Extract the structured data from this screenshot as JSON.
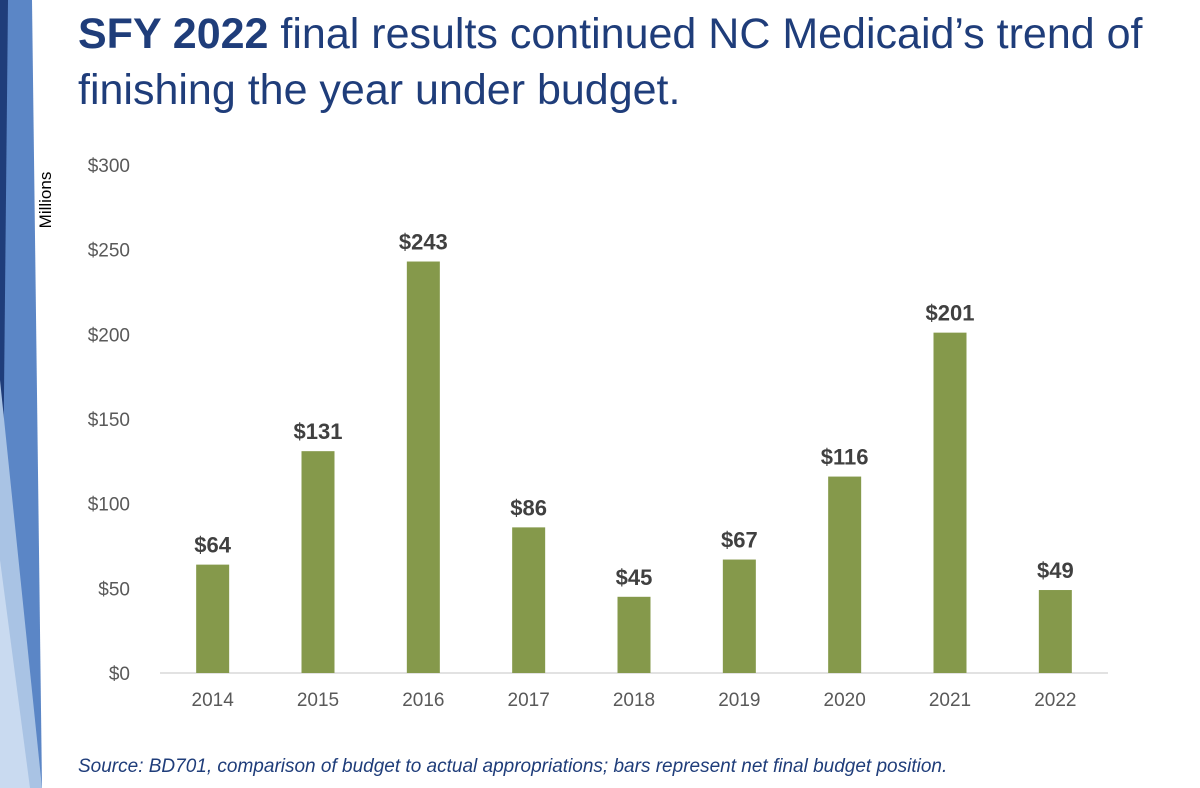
{
  "title": {
    "bold": "SFY 2022",
    "rest": " final results continued NC Medicaid’s trend of finishing the year under budget."
  },
  "source": "Source: BD701, comparison of budget to actual appropriations; bars represent net final budget position.",
  "colors": {
    "bar": "#85994b",
    "title": "#1f3d7a",
    "accent_dark": "#1f3d7a",
    "accent_mid": "#5b86c6",
    "accent_light": "#a9c3e4"
  },
  "chart_data": {
    "type": "bar",
    "categories": [
      "2014",
      "2015",
      "2016",
      "2017",
      "2018",
      "2019",
      "2020",
      "2021",
      "2022"
    ],
    "values": [
      64,
      131,
      243,
      86,
      45,
      67,
      116,
      201,
      49
    ],
    "data_labels": [
      "$64",
      "$131",
      "$243",
      "$86",
      "$45",
      "$67",
      "$116",
      "$201",
      "$49"
    ],
    "ylabel": "Millions",
    "ylim": [
      0,
      300
    ],
    "yticks": [
      0,
      50,
      100,
      150,
      200,
      250,
      300
    ],
    "ytick_labels": [
      "$0",
      "$50",
      "$100",
      "$150",
      "$200",
      "$250",
      "$300"
    ],
    "grid": false,
    "legend": "none"
  }
}
